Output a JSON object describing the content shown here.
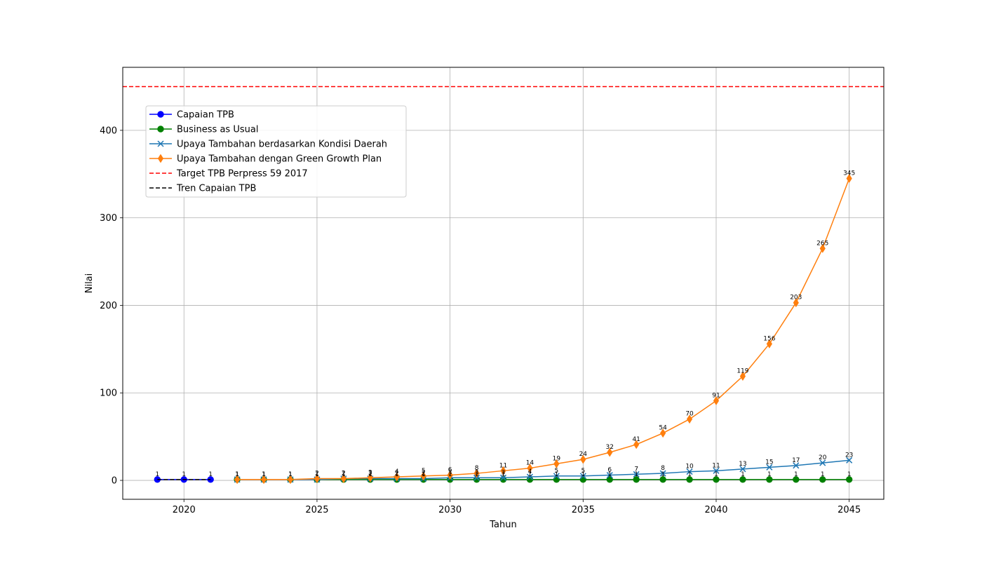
{
  "chart_data": {
    "type": "line",
    "xlabel": "Tahun",
    "ylabel": "Nilai",
    "xlim": [
      2017.7,
      2046.3
    ],
    "ylim": [
      -21.6,
      472.0
    ],
    "x_ticks": [
      2020,
      2025,
      2030,
      2035,
      2040,
      2045
    ],
    "y_ticks": [
      0,
      100,
      200,
      300,
      400
    ],
    "grid": true,
    "legend_position": "upper-left",
    "series": [
      {
        "name": "Capaian TPB",
        "color": "#0000ff",
        "marker": "circle",
        "line_style": "solid",
        "show_labels": true,
        "x": [
          2019,
          2020,
          2021
        ],
        "values": [
          1,
          1,
          1
        ]
      },
      {
        "name": "Business as Usual",
        "color": "#008000",
        "marker": "circle",
        "line_style": "solid",
        "show_labels": true,
        "x": [
          2022,
          2023,
          2024,
          2025,
          2026,
          2027,
          2028,
          2029,
          2030,
          2031,
          2032,
          2033,
          2034,
          2035,
          2036,
          2037,
          2038,
          2039,
          2040,
          2041,
          2042,
          2043,
          2044,
          2045
        ],
        "values": [
          1,
          1,
          1,
          1,
          1,
          1,
          1,
          1,
          1,
          1,
          1,
          1,
          1,
          1,
          1,
          1,
          1,
          1,
          1,
          1,
          1,
          1,
          1,
          1
        ]
      },
      {
        "name": "Upaya Tambahan berdasarkan Kondisi Daerah",
        "color": "#1f77b4",
        "marker": "x",
        "line_style": "solid",
        "show_labels": true,
        "x": [
          2022,
          2023,
          2024,
          2025,
          2026,
          2027,
          2028,
          2029,
          2030,
          2031,
          2032,
          2033,
          2034,
          2035,
          2036,
          2037,
          2038,
          2039,
          2040,
          2041,
          2042,
          2043,
          2044,
          2045
        ],
        "values": [
          1,
          1,
          1,
          1,
          2,
          2,
          2,
          2,
          3,
          3,
          3,
          4,
          5,
          5,
          6,
          7,
          8,
          10,
          11,
          13,
          15,
          17,
          20,
          23
        ]
      },
      {
        "name": "Upaya Tambahan dengan Green Growth Plan",
        "color": "#ff7f0e",
        "marker": "thin-diamond",
        "line_style": "solid",
        "show_labels": true,
        "x": [
          2022,
          2023,
          2024,
          2025,
          2026,
          2027,
          2028,
          2029,
          2030,
          2031,
          2032,
          2033,
          2034,
          2035,
          2036,
          2037,
          2038,
          2039,
          2040,
          2041,
          2042,
          2043,
          2044,
          2045
        ],
        "values": [
          1,
          1,
          1,
          2,
          2,
          3,
          4,
          5,
          6,
          8,
          11,
          14,
          19,
          24,
          32,
          41,
          54,
          70,
          91,
          119,
          156,
          203,
          265,
          345
        ]
      },
      {
        "name": "Target TPB Perpress 59 2017",
        "color": "#ff0000",
        "marker": "none",
        "line_style": "dashed",
        "show_labels": false,
        "type": "hline",
        "y": 450
      },
      {
        "name": "Tren Capaian TPB",
        "color": "#000000",
        "marker": "none",
        "line_style": "dashed",
        "show_labels": false,
        "x": [
          2019,
          2020,
          2021
        ],
        "values": [
          1,
          1,
          1
        ]
      }
    ]
  }
}
